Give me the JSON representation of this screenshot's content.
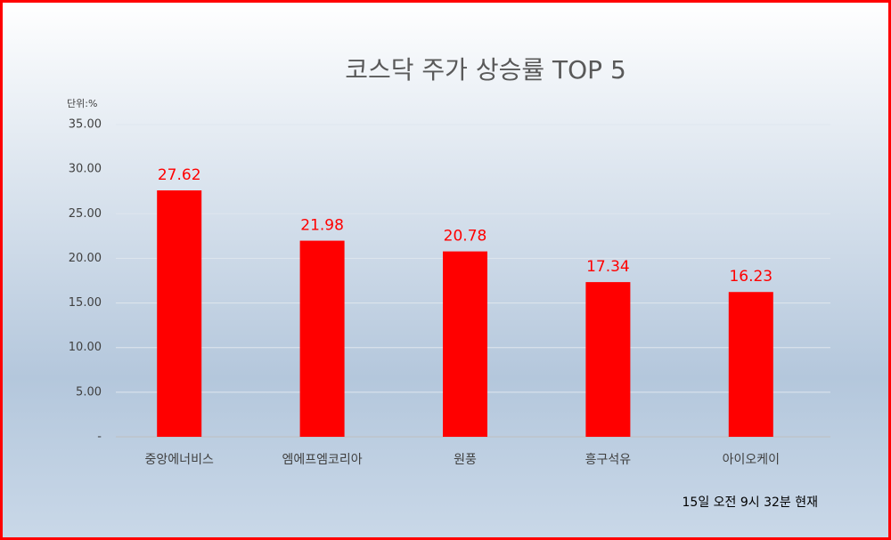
{
  "chart_data": {
    "type": "bar",
    "title": "코스닥 주가 상승률 TOP 5",
    "unit_label": "단위:%",
    "footnote": "15일  오전 9시 32분 현재",
    "categories": [
      "중앙에너비스",
      "엠에프엠코리아",
      "원풍",
      "흥구석유",
      "아이오케이"
    ],
    "values": [
      27.62,
      21.98,
      20.78,
      17.34,
      16.23
    ],
    "color": "#ff0000",
    "ylim": [
      0,
      35
    ],
    "yticks": [
      {
        "value": 0,
        "label": "-"
      },
      {
        "value": 5,
        "label": "5.00"
      },
      {
        "value": 10,
        "label": "10.00"
      },
      {
        "value": 15,
        "label": "15.00"
      },
      {
        "value": 20,
        "label": "20.00"
      },
      {
        "value": 25,
        "label": "25.00"
      },
      {
        "value": 30,
        "label": "30.00"
      },
      {
        "value": 35,
        "label": "35.00"
      }
    ],
    "grid": true
  }
}
